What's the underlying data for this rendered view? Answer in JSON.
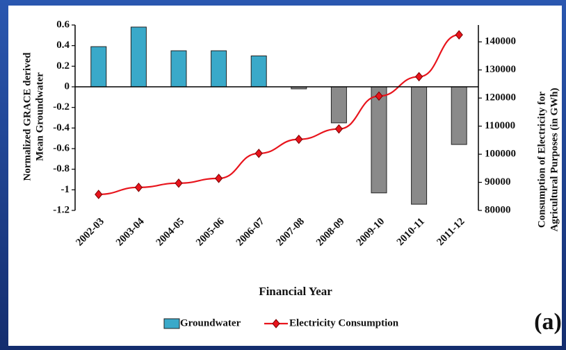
{
  "chart_data": {
    "type": "bar",
    "categories": [
      "2002-03",
      "2003-04",
      "2004-05",
      "2005-06",
      "2006-07",
      "2007-08",
      "2008-09",
      "2009-10",
      "2010-11",
      "2011-12"
    ],
    "series": [
      {
        "name": "Groundwater",
        "color": "#3aa9c9",
        "negative_color": "#8a8a8a",
        "values": [
          0.39,
          0.58,
          0.35,
          0.35,
          0.3,
          -0.02,
          -0.35,
          -1.03,
          -1.14,
          -0.56
        ]
      },
      {
        "name": "Electricity Consumption",
        "type": "line",
        "axis": "y2",
        "color": "#e8141c",
        "values": [
          85700,
          88200,
          89700,
          91400,
          100300,
          105300,
          109000,
          120700,
          127600,
          142500
        ]
      }
    ],
    "x_label": "Financial Year",
    "y_label": [
      "Normalized GRACE derived",
      "Mean Groundwater"
    ],
    "y2_label": [
      "Consumption of Electricity for",
      "Agricultural Purposes (in GWh)"
    ],
    "annotation": "(a)",
    "ylim": [
      -1.2,
      0.6
    ],
    "yticks": [
      0.6,
      0.4,
      0.2,
      0,
      -0.2,
      -0.4,
      -0.6,
      -0.8,
      -1,
      -1.2
    ],
    "y2lim": [
      80000,
      146000
    ],
    "y2ticks": [
      80000,
      90000,
      100000,
      110000,
      120000,
      130000,
      140000
    ],
    "legend": "bottom"
  }
}
